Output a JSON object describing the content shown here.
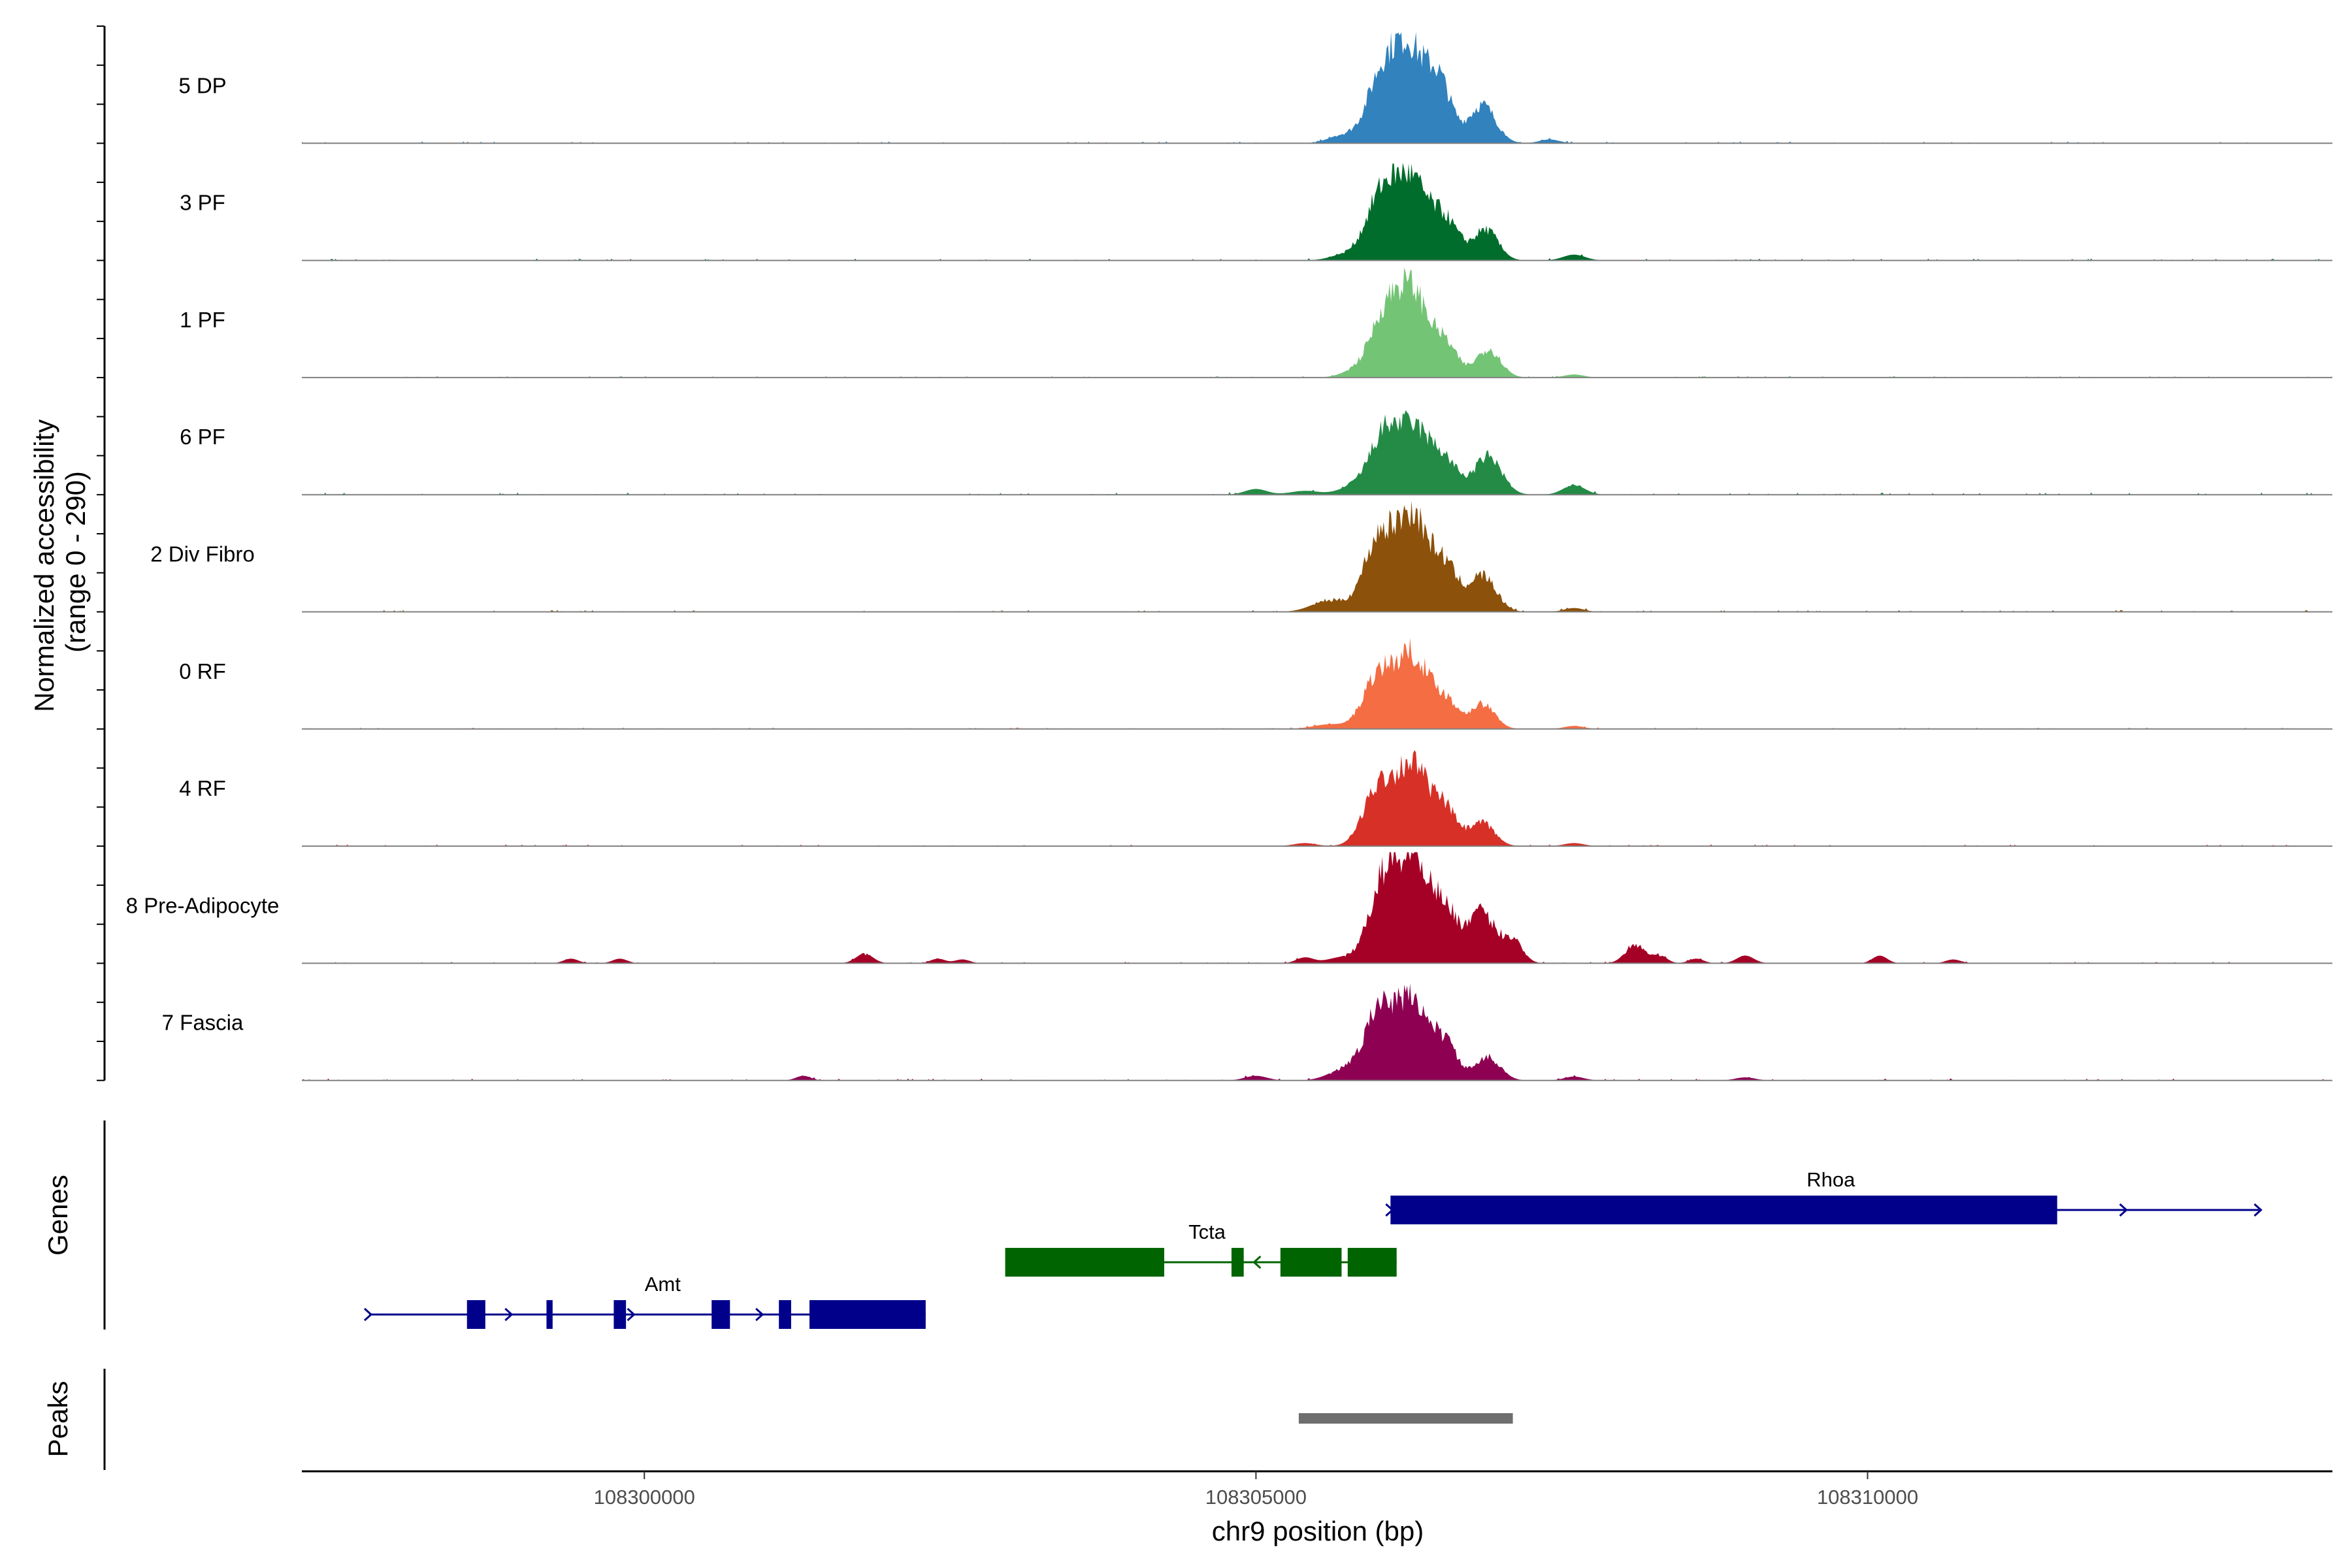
{
  "chart_data": {
    "type": "area",
    "title": "",
    "xlabel": "chr9 position (bp)",
    "ylabel": "Normalized accessibility\n(range 0 - 290)",
    "ylabel_lines": [
      "Normalized accessibility",
      "(range 0 - 290)"
    ],
    "xlim": [
      108297200,
      108313800
    ],
    "ylim": [
      0,
      290
    ],
    "x_ticks": [
      108300000,
      108305000,
      108310000
    ],
    "x_tick_labels": [
      "108300000",
      "108305000",
      "108310000"
    ],
    "series": [
      {
        "name": "5 DP",
        "color": "#3182bd",
        "peaks": [
          [
            108305700,
            20,
            110
          ],
          [
            108306020,
            160,
            120
          ],
          [
            108306250,
            240,
            130
          ],
          [
            108306500,
            150,
            100
          ],
          [
            108306850,
            100,
            110
          ],
          [
            108307400,
            10,
            80
          ]
        ],
        "noise": 5
      },
      {
        "name": "3 PF",
        "color": "#006d2c",
        "peaks": [
          [
            108305700,
            12,
            110
          ],
          [
            108306030,
            170,
            130
          ],
          [
            108306280,
            190,
            130
          ],
          [
            108306550,
            100,
            110
          ],
          [
            108306880,
            80,
            100
          ],
          [
            108307600,
            15,
            90
          ]
        ],
        "noise": 5
      },
      {
        "name": "1 PF",
        "color": "#74c476",
        "peaks": [
          [
            108305800,
            15,
            110
          ],
          [
            108306050,
            150,
            120
          ],
          [
            108306280,
            215,
            130
          ],
          [
            108306550,
            80,
            100
          ],
          [
            108306900,
            75,
            100
          ],
          [
            108307600,
            8,
            80
          ]
        ],
        "noise": 4
      },
      {
        "name": "6 PF",
        "color": "#238b45",
        "peaks": [
          [
            108305000,
            15,
            90
          ],
          [
            108305400,
            10,
            120
          ],
          [
            108305800,
            20,
            120
          ],
          [
            108306050,
            150,
            120
          ],
          [
            108306300,
            160,
            130
          ],
          [
            108306550,
            80,
            110
          ],
          [
            108306900,
            100,
            110
          ],
          [
            108307600,
            25,
            90
          ]
        ],
        "noise": 6
      },
      {
        "name": "2 Div Fibro",
        "color": "#8c510a",
        "peaks": [
          [
            108305600,
            30,
            140
          ],
          [
            108306000,
            185,
            120
          ],
          [
            108306280,
            250,
            130
          ],
          [
            108306550,
            110,
            100
          ],
          [
            108306850,
            95,
            110
          ],
          [
            108307600,
            10,
            80
          ]
        ],
        "noise": 5
      },
      {
        "name": "0 RF",
        "color": "#f46d43",
        "peaks": [
          [
            108305600,
            12,
            130
          ],
          [
            108306000,
            140,
            120
          ],
          [
            108306280,
            190,
            130
          ],
          [
            108306550,
            70,
            100
          ],
          [
            108306850,
            65,
            100
          ],
          [
            108307600,
            8,
            80
          ]
        ],
        "noise": 4
      },
      {
        "name": "4 RF",
        "color": "#d73027",
        "peaks": [
          [
            108305400,
            8,
            90
          ],
          [
            108306000,
            150,
            120
          ],
          [
            108306280,
            210,
            130
          ],
          [
            108306550,
            90,
            100
          ],
          [
            108306850,
            60,
            100
          ],
          [
            108307600,
            8,
            80
          ]
        ],
        "noise": 5
      },
      {
        "name": "8 Pre-Adipocyte",
        "color": "#a50026",
        "peaks": [
          [
            108299400,
            12,
            60
          ],
          [
            108299800,
            12,
            60
          ],
          [
            108301800,
            25,
            70
          ],
          [
            108302400,
            12,
            60
          ],
          [
            108302600,
            10,
            60
          ],
          [
            108305400,
            15,
            70
          ],
          [
            108305700,
            15,
            120
          ],
          [
            108306050,
            220,
            120
          ],
          [
            108306300,
            260,
            120
          ],
          [
            108306550,
            130,
            110
          ],
          [
            108306850,
            130,
            110
          ],
          [
            108307100,
            60,
            80
          ],
          [
            108308100,
            50,
            80
          ],
          [
            108308300,
            20,
            60
          ],
          [
            108308600,
            12,
            60
          ],
          [
            108309000,
            20,
            70
          ],
          [
            108310100,
            20,
            60
          ],
          [
            108310700,
            10,
            60
          ]
        ],
        "noise": 4
      },
      {
        "name": "7 Fascia",
        "color": "#8e0152",
        "peaks": [
          [
            108301300,
            12,
            60
          ],
          [
            108305000,
            12,
            90
          ],
          [
            108305700,
            25,
            120
          ],
          [
            108306000,
            175,
            120
          ],
          [
            108306280,
            205,
            130
          ],
          [
            108306550,
            90,
            100
          ],
          [
            108306900,
            60,
            100
          ],
          [
            108307600,
            10,
            80
          ],
          [
            108309000,
            8,
            80
          ]
        ],
        "noise": 5
      }
    ],
    "genes_track_label": "Genes",
    "peaks_track_label": "Peaks",
    "genes": [
      {
        "name": "Rhoa",
        "strand": "+",
        "color": "#00008b",
        "start": 108306100,
        "end": 108313200,
        "row": 0,
        "exons": [
          [
            108306100,
            108311550
          ]
        ],
        "arrows": [
          108306100,
          108312100,
          108313200
        ]
      },
      {
        "name": "Tcta",
        "strand": "-",
        "color": "#006400",
        "start": 108302950,
        "end": 108306150,
        "row": 1,
        "exons": [
          [
            108302950,
            108304250
          ],
          [
            108304800,
            108304900
          ],
          [
            108305200,
            108305700
          ],
          [
            108305750,
            108306150
          ]
        ],
        "arrows": [
          108305000
        ]
      },
      {
        "name": "Amt",
        "strand": "+",
        "color": "#00008b",
        "start": 108297750,
        "end": 108302300,
        "row": 2,
        "exons": [
          [
            108298550,
            108298700
          ],
          [
            108299200,
            108299250
          ],
          [
            108299750,
            108299850
          ],
          [
            108300550,
            108300700
          ],
          [
            108301100,
            108301200
          ],
          [
            108301350,
            108302300
          ]
        ],
        "arrows": [
          108297750,
          108298900,
          108299900,
          108300950
        ]
      }
    ],
    "peak_regions": [
      [
        108305350,
        108307100
      ]
    ],
    "peak_color": "#6e6e6e"
  }
}
